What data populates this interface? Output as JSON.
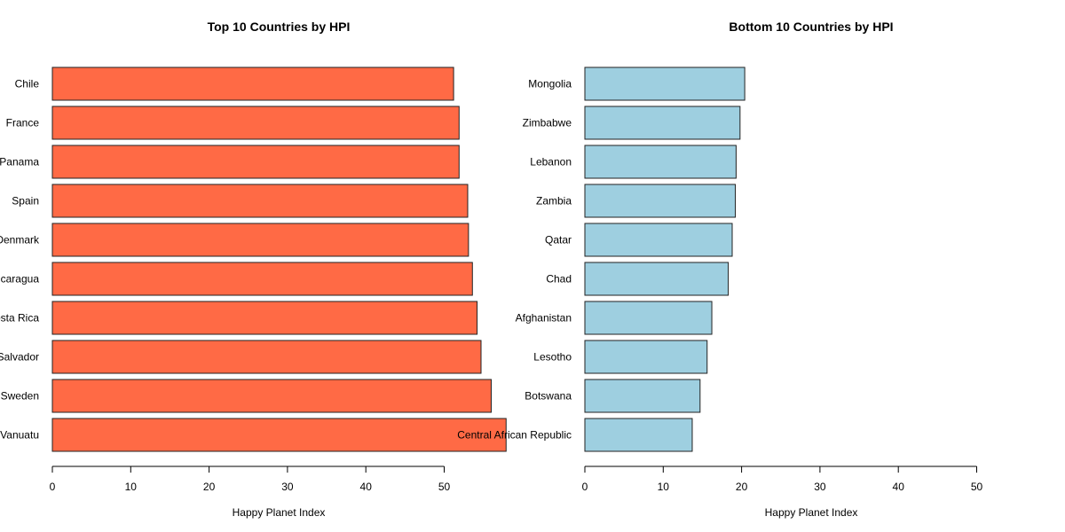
{
  "chart_data": [
    {
      "type": "bar",
      "orientation": "horizontal",
      "title": "Top 10 Countries by HPI",
      "xlabel": "Happy Planet Index",
      "categories": [
        "Chile",
        "France",
        "Panama",
        "Spain",
        "Denmark",
        "Nicaragua",
        "Costa Rica",
        "El Salvador",
        "Sweden",
        "Vanuatu"
      ],
      "values": [
        51.2,
        51.9,
        51.9,
        53.0,
        53.1,
        53.6,
        54.2,
        54.7,
        56.0,
        57.9
      ],
      "xlim": [
        0,
        58
      ],
      "xticks": [
        0,
        10,
        20,
        30,
        40,
        50
      ],
      "bar_color": "#FF6A45",
      "grid": false
    },
    {
      "type": "bar",
      "orientation": "horizontal",
      "title": "Bottom 10 Countries by HPI",
      "xlabel": "Happy Planet Index",
      "categories": [
        "Mongolia",
        "Zimbabwe",
        "Lebanon",
        "Zambia",
        "Qatar",
        "Chad",
        "Afghanistan",
        "Lesotho",
        "Botswana",
        "Central African Republic"
      ],
      "values": [
        20.4,
        19.8,
        19.3,
        19.2,
        18.8,
        18.3,
        16.2,
        15.6,
        14.7,
        13.7
      ],
      "xlim": [
        0,
        50
      ],
      "xticks": [
        0,
        10,
        20,
        30,
        40,
        50
      ],
      "bar_color": "#9ECFE0",
      "grid": false
    }
  ]
}
